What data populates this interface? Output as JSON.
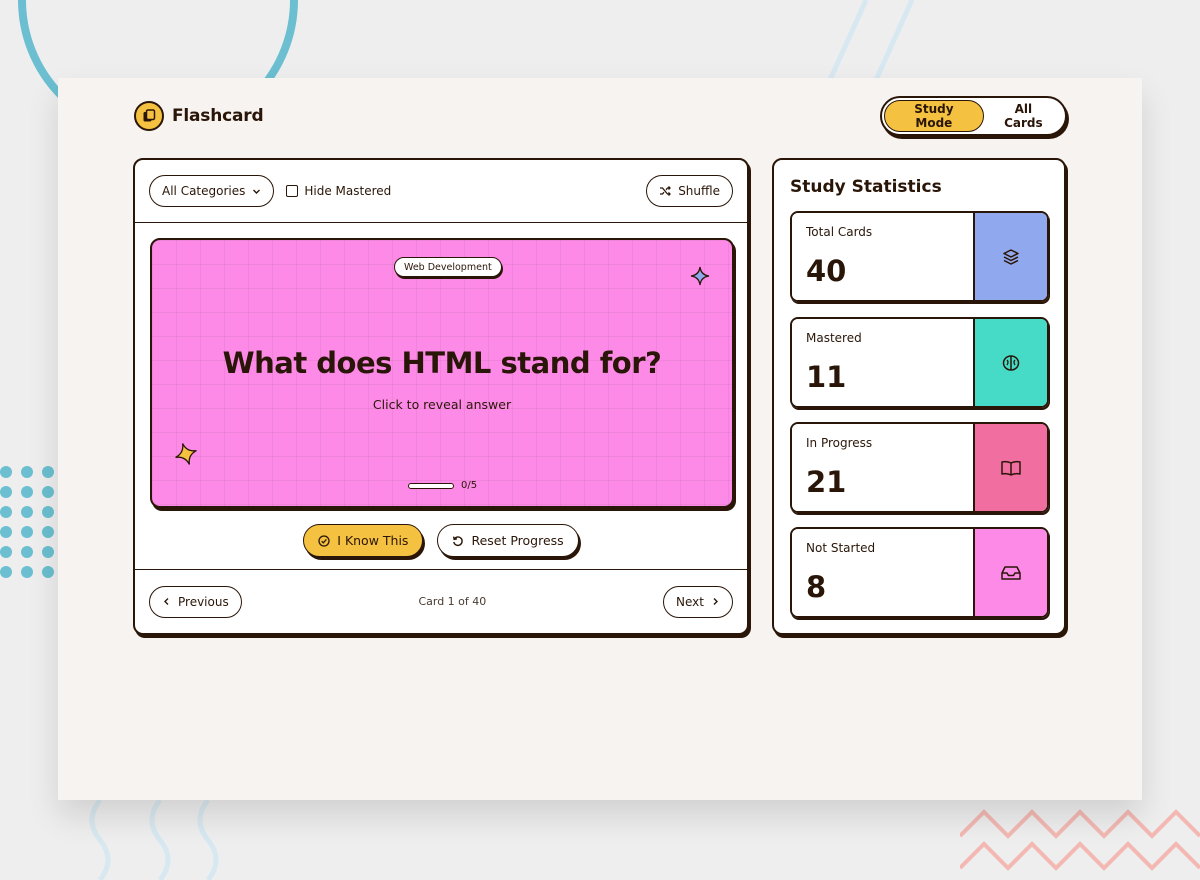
{
  "brand": {
    "name": "Flashcard",
    "icon": "cards-icon"
  },
  "mode_switch": {
    "study": "Study Mode",
    "all": "All Cards",
    "active": "study"
  },
  "toolbar": {
    "category": "All Categories",
    "hide_mastered": "Hide Mastered",
    "hide_mastered_checked": false,
    "shuffle": "Shuffle"
  },
  "card": {
    "category_tag": "Web Development",
    "question": "What does HTML stand for?",
    "hint": "Click to reveal answer",
    "progress_label": "0/5",
    "progress_fraction": 0,
    "background": "#fd8ae6"
  },
  "actions": {
    "know": "I Know This",
    "reset": "Reset Progress"
  },
  "footer": {
    "previous": "Previous",
    "next": "Next",
    "counter": "Card 1 of 40"
  },
  "stats": {
    "title": "Study Statistics",
    "items": [
      {
        "label": "Total Cards",
        "value": "40",
        "color": "#90a8ed",
        "icon": "layers-icon"
      },
      {
        "label": "Mastered",
        "value": "11",
        "color": "#45dbc7",
        "icon": "brain-icon"
      },
      {
        "label": "In Progress",
        "value": "21",
        "color": "#f06fa0",
        "icon": "book-open-icon"
      },
      {
        "label": "Not Started",
        "value": "8",
        "color": "#fd8ae6",
        "icon": "inbox-icon"
      }
    ]
  },
  "colors": {
    "accent": "#f5c140",
    "ink": "#2a1608",
    "frame": "#f6f3f0"
  }
}
